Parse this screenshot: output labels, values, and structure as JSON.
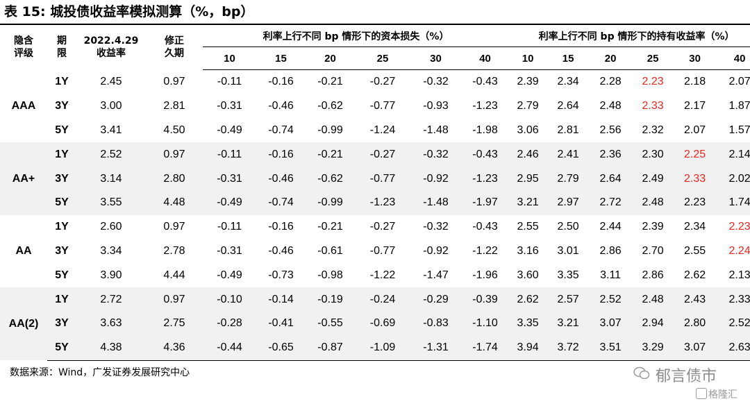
{
  "title": "表 15:  城投债收益率模拟测算（%，bp）",
  "header": {
    "rating": "隐含\n评级",
    "tenor": "期\n限",
    "yield": "2022.4.29\n收益率",
    "duration": "修正\n久期",
    "group_loss": "利率上行不同 bp 情形下的资本损失（%）",
    "group_hold": "利率上行不同 bp 情形下的持有收益率（%）",
    "bps": [
      "10",
      "15",
      "20",
      "25",
      "30",
      "40"
    ]
  },
  "groups": [
    {
      "rating": "AAA",
      "rows": [
        {
          "tenor": "1Y",
          "yield": "2.45",
          "duration": "0.97",
          "loss": [
            "-0.11",
            "-0.16",
            "-0.21",
            "-0.27",
            "-0.32",
            "-0.43"
          ],
          "hold": [
            "2.39",
            "2.34",
            "2.28",
            "2.23",
            "2.18",
            "2.07"
          ],
          "red": [
            3
          ]
        },
        {
          "tenor": "3Y",
          "yield": "3.00",
          "duration": "2.81",
          "loss": [
            "-0.31",
            "-0.46",
            "-0.62",
            "-0.77",
            "-0.93",
            "-1.23"
          ],
          "hold": [
            "2.79",
            "2.64",
            "2.48",
            "2.33",
            "2.17",
            "1.87"
          ],
          "red": [
            3
          ]
        },
        {
          "tenor": "5Y",
          "yield": "3.41",
          "duration": "4.50",
          "loss": [
            "-0.49",
            "-0.74",
            "-0.99",
            "-1.24",
            "-1.48",
            "-1.98"
          ],
          "hold": [
            "3.06",
            "2.81",
            "2.56",
            "2.32",
            "2.07",
            "1.57"
          ],
          "red": []
        }
      ]
    },
    {
      "rating": "AA+",
      "rows": [
        {
          "tenor": "1Y",
          "yield": "2.52",
          "duration": "0.97",
          "loss": [
            "-0.11",
            "-0.16",
            "-0.21",
            "-0.27",
            "-0.32",
            "-0.43"
          ],
          "hold": [
            "2.46",
            "2.41",
            "2.36",
            "2.30",
            "2.25",
            "2.14"
          ],
          "red": [
            4
          ]
        },
        {
          "tenor": "3Y",
          "yield": "3.14",
          "duration": "2.80",
          "loss": [
            "-0.31",
            "-0.46",
            "-0.62",
            "-0.77",
            "-0.92",
            "-1.23"
          ],
          "hold": [
            "2.95",
            "2.79",
            "2.64",
            "2.49",
            "2.33",
            "2.02"
          ],
          "red": [
            4
          ]
        },
        {
          "tenor": "5Y",
          "yield": "3.55",
          "duration": "4.48",
          "loss": [
            "-0.49",
            "-0.74",
            "-0.99",
            "-1.23",
            "-1.48",
            "-1.97"
          ],
          "hold": [
            "3.21",
            "2.97",
            "2.72",
            "2.48",
            "2.23",
            "1.74"
          ],
          "red": []
        }
      ]
    },
    {
      "rating": "AA",
      "rows": [
        {
          "tenor": "1Y",
          "yield": "2.60",
          "duration": "0.97",
          "loss": [
            "-0.11",
            "-0.16",
            "-0.21",
            "-0.27",
            "-0.32",
            "-0.43"
          ],
          "hold": [
            "2.55",
            "2.50",
            "2.44",
            "2.39",
            "2.34",
            "2.23"
          ],
          "red": [
            5
          ]
        },
        {
          "tenor": "3Y",
          "yield": "3.34",
          "duration": "2.78",
          "loss": [
            "-0.31",
            "-0.46",
            "-0.61",
            "-0.77",
            "-0.92",
            "-1.22"
          ],
          "hold": [
            "3.16",
            "3.01",
            "2.86",
            "2.70",
            "2.55",
            "2.24"
          ],
          "red": [
            5
          ]
        },
        {
          "tenor": "5Y",
          "yield": "3.90",
          "duration": "4.44",
          "loss": [
            "-0.49",
            "-0.73",
            "-0.98",
            "-1.22",
            "-1.47",
            "-1.96"
          ],
          "hold": [
            "3.60",
            "3.35",
            "3.11",
            "2.86",
            "2.62",
            "2.13"
          ],
          "red": []
        }
      ]
    },
    {
      "rating": "AA(2)",
      "rows": [
        {
          "tenor": "1Y",
          "yield": "2.72",
          "duration": "0.97",
          "loss": [
            "-0.10",
            "-0.14",
            "-0.19",
            "-0.24",
            "-0.29",
            "-0.39"
          ],
          "hold": [
            "2.62",
            "2.57",
            "2.52",
            "2.48",
            "2.43",
            "2.33"
          ],
          "red": []
        },
        {
          "tenor": "3Y",
          "yield": "3.63",
          "duration": "2.75",
          "loss": [
            "-0.28",
            "-0.41",
            "-0.55",
            "-0.69",
            "-0.83",
            "-1.10"
          ],
          "hold": [
            "3.35",
            "3.21",
            "3.07",
            "2.94",
            "2.80",
            "2.52"
          ],
          "red": []
        },
        {
          "tenor": "5Y",
          "yield": "4.38",
          "duration": "4.36",
          "loss": [
            "-0.44",
            "-0.65",
            "-0.87",
            "-1.09",
            "-1.31",
            "-1.74"
          ],
          "hold": [
            "3.94",
            "3.72",
            "3.51",
            "3.29",
            "3.07",
            "2.63"
          ],
          "red": []
        }
      ]
    }
  ],
  "source": "数据来源：Wind，广发证券发展研究中心",
  "watermark": {
    "text": "郁言债市",
    "brand": "格隆汇"
  },
  "colors": {
    "highlight": "#e8261c",
    "shade": "#f1f1f1"
  }
}
